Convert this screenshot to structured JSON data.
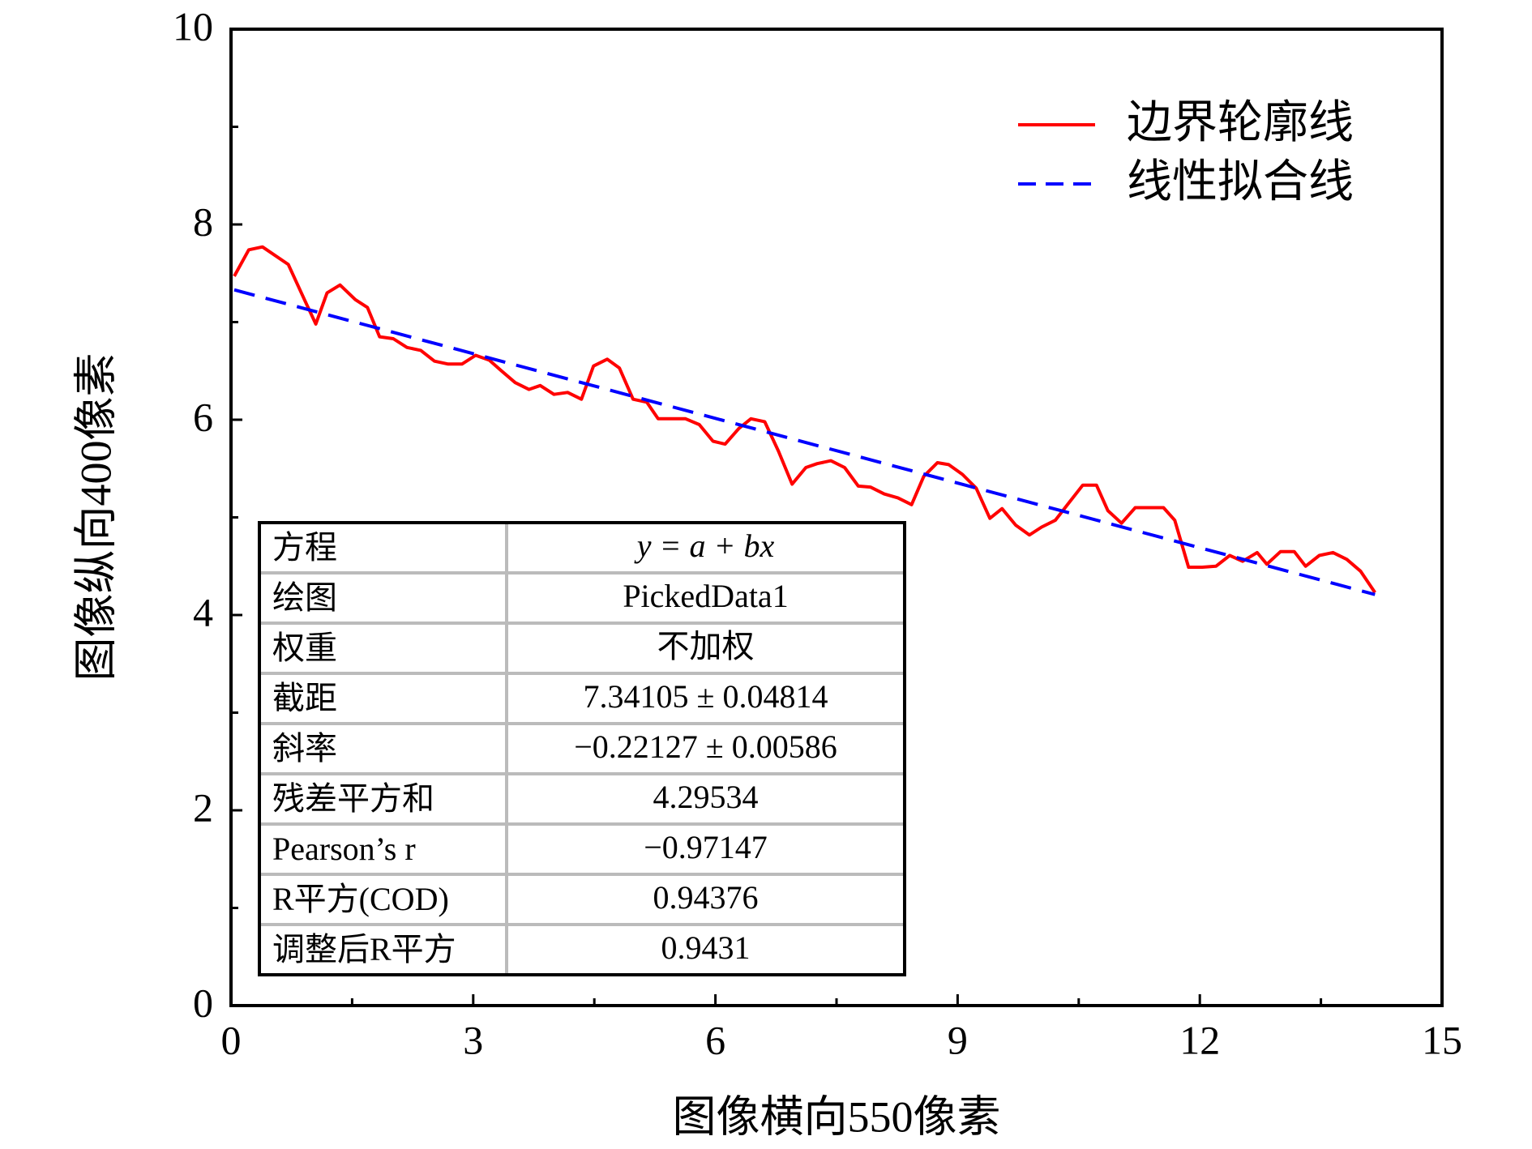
{
  "chart_data": {
    "type": "line",
    "xlabel": "图像横向550像素",
    "ylabel": "图像纵向400像素",
    "xlim": [
      0,
      15
    ],
    "ylim": [
      0,
      10
    ],
    "xticks": [
      0,
      3,
      6,
      9,
      12,
      15
    ],
    "yticks": [
      0,
      2,
      4,
      6,
      8,
      10
    ],
    "xticks_minor": [
      1.5,
      4.5,
      7.5,
      10.5,
      13.5
    ],
    "yticks_minor": [
      1,
      3,
      5,
      7,
      9
    ],
    "legend": "upper right",
    "series": [
      {
        "name": "边界轮廓线",
        "color": "#ff0000",
        "style": "solid",
        "x": [
          0.04,
          0.22,
          0.39,
          0.71,
          0.91,
          1.05,
          1.19,
          1.35,
          1.54,
          1.69,
          1.84,
          2.01,
          2.18,
          2.35,
          2.52,
          2.69,
          2.86,
          3.03,
          3.2,
          3.35,
          3.52,
          3.69,
          3.83,
          4.0,
          4.17,
          4.34,
          4.49,
          4.66,
          4.81,
          4.98,
          5.15,
          5.29,
          5.46,
          5.63,
          5.8,
          5.97,
          6.12,
          6.29,
          6.44,
          6.61,
          6.78,
          6.95,
          7.12,
          7.26,
          7.43,
          7.6,
          7.77,
          7.92,
          8.09,
          8.26,
          8.43,
          8.58,
          8.75,
          8.89,
          9.06,
          9.23,
          9.4,
          9.55,
          9.72,
          9.89,
          10.04,
          10.21,
          10.38,
          10.55,
          10.72,
          10.86,
          11.03,
          11.2,
          11.37,
          11.55,
          11.69,
          11.86,
          12.03,
          12.2,
          12.37,
          12.53,
          12.71,
          12.83,
          13.0,
          13.17,
          13.31,
          13.48,
          13.65,
          13.82,
          13.99,
          14.17
        ],
        "values": [
          7.47,
          7.74,
          7.77,
          7.59,
          7.23,
          6.98,
          7.3,
          7.38,
          7.23,
          7.15,
          6.85,
          6.83,
          6.74,
          6.71,
          6.6,
          6.57,
          6.57,
          6.66,
          6.61,
          6.5,
          6.38,
          6.31,
          6.35,
          6.26,
          6.28,
          6.21,
          6.55,
          6.62,
          6.53,
          6.21,
          6.18,
          6.01,
          6.01,
          6.01,
          5.95,
          5.78,
          5.75,
          5.91,
          6.01,
          5.98,
          5.68,
          5.34,
          5.51,
          5.55,
          5.58,
          5.51,
          5.32,
          5.31,
          5.24,
          5.2,
          5.13,
          5.42,
          5.56,
          5.54,
          5.44,
          5.3,
          4.99,
          5.09,
          4.92,
          4.82,
          4.9,
          4.97,
          5.15,
          5.33,
          5.33,
          5.07,
          4.94,
          5.1,
          5.1,
          5.1,
          4.97,
          4.49,
          4.49,
          4.5,
          4.61,
          4.55,
          4.64,
          4.52,
          4.65,
          4.65,
          4.5,
          4.61,
          4.64,
          4.57,
          4.45,
          4.23
        ]
      },
      {
        "name": "线性拟合线",
        "color": "#0000ff",
        "style": "dashed",
        "x": [
          0.04,
          14.17
        ],
        "values": [
          7.33,
          4.21
        ]
      }
    ],
    "fit_table": [
      [
        "方程",
        "y = a + bx"
      ],
      [
        "绘图",
        "PickedData1"
      ],
      [
        "权重",
        "不加权"
      ],
      [
        "截距",
        "7.34105 ± 0.04814"
      ],
      [
        "斜率",
        "−0.22127 ± 0.00586"
      ],
      [
        "残差平方和",
        "4.29534"
      ],
      [
        "Pearson’s r",
        "−0.97147"
      ],
      [
        "R平方(COD)",
        "0.94376"
      ],
      [
        "调整后R平方",
        "0.9431"
      ]
    ]
  }
}
